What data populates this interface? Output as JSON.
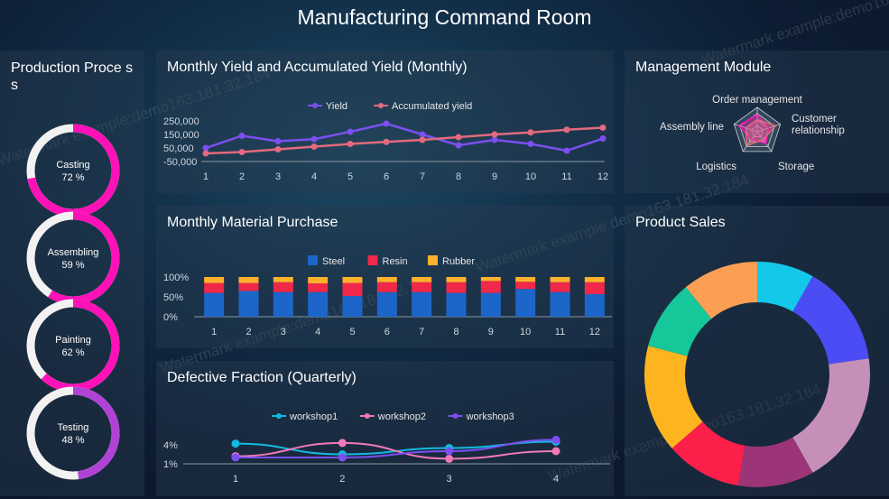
{
  "page_title": "Manufacturing Command Room",
  "watermark": "Watermark example:demo163.181.32.184",
  "production": {
    "title": "Production Proce ss",
    "rings": [
      {
        "label": "Casting",
        "pct_text": "72 %",
        "value": 72,
        "color": "#ff11b8"
      },
      {
        "label": "Assembling",
        "pct_text": "59 %",
        "value": 59,
        "color": "#ff11b8"
      },
      {
        "label": "Painting",
        "pct_text": "62 %",
        "value": 62,
        "color": "#ff11b8"
      },
      {
        "label": "Testing",
        "pct_text": "48 %",
        "value": 48,
        "color": "#b043d6"
      }
    ]
  },
  "yield_chart": {
    "title": "Monthly Yield and Accumulated Yield (Monthly)",
    "chart_data": {
      "type": "line",
      "x": [
        1,
        2,
        3,
        4,
        5,
        6,
        7,
        8,
        9,
        10,
        11,
        12
      ],
      "series": [
        {
          "name": "Yield",
          "color": "#7b4ff0",
          "values": [
            50000,
            140000,
            100000,
            115000,
            170000,
            230000,
            150000,
            70000,
            110000,
            80000,
            30000,
            120000
          ]
        },
        {
          "name": "Accumulated yield",
          "color": "#e36a7e",
          "values": [
            10000,
            20000,
            40000,
            60000,
            80000,
            95000,
            110000,
            130000,
            150000,
            165000,
            185000,
            200000
          ]
        }
      ],
      "y_ticks": [
        "250,000",
        "150,000",
        "50,000",
        "-50,000"
      ],
      "ylim": [
        -50000,
        250000
      ]
    }
  },
  "purchase_chart": {
    "title": "Monthly Material Purchase",
    "chart_data": {
      "type": "bar",
      "categories": [
        "1",
        "2",
        "3",
        "4",
        "5",
        "6",
        "7",
        "8",
        "9",
        "10",
        "11",
        "12"
      ],
      "series": [
        {
          "name": "Steel",
          "color": "#1c66c9",
          "values": [
            60,
            65,
            62,
            62,
            52,
            62,
            62,
            60,
            60,
            70,
            62,
            57
          ]
        },
        {
          "name": "Resin",
          "color": "#f0284a",
          "values": [
            25,
            20,
            25,
            22,
            33,
            25,
            25,
            27,
            30,
            18,
            25,
            30
          ]
        },
        {
          "name": "Rubber",
          "color": "#fdb12c",
          "values": [
            15,
            15,
            13,
            16,
            15,
            13,
            13,
            13,
            10,
            12,
            13,
            13
          ]
        }
      ],
      "y_ticks": [
        "100%",
        "50%",
        "0%"
      ],
      "ylim": [
        0,
        100
      ]
    }
  },
  "defective_chart": {
    "title": "Defective Fraction (Quarterly)",
    "chart_data": {
      "type": "line",
      "x": [
        1,
        2,
        3,
        4
      ],
      "series": [
        {
          "name": "workshop1",
          "color": "#13b9e0",
          "values": [
            4.2,
            2.5,
            3.5,
            4.5
          ]
        },
        {
          "name": "workshop2",
          "color": "#f07ab6",
          "values": [
            2.2,
            4.3,
            1.8,
            3.0
          ]
        },
        {
          "name": "workshop3",
          "color": "#7b4ff0",
          "values": [
            2.0,
            2.0,
            3.0,
            4.8
          ]
        }
      ],
      "y_ticks": [
        "4%",
        "1%"
      ],
      "ylim": [
        1,
        4
      ]
    }
  },
  "management": {
    "title": "Management Module",
    "chart_data": {
      "type": "radar",
      "axes": [
        "Order management",
        "Customer relationship",
        "Storage",
        "Logistics",
        "Assembly line"
      ],
      "series": [
        {
          "values": [
            0.7,
            0.5,
            0.6,
            0.4,
            0.8
          ],
          "color": "#ff11b8"
        },
        {
          "values": [
            0.5,
            0.8,
            0.4,
            0.7,
            0.5
          ],
          "color": "#e36a7e"
        }
      ]
    }
  },
  "sales": {
    "title": "Product Sales",
    "chart_data": {
      "type": "pie",
      "values": [
        9,
        16,
        21,
        12,
        12,
        17,
        11,
        12
      ],
      "colors": [
        "#13c8e8",
        "#4c4cf5",
        "#c68fb8",
        "#9b3577",
        "#fc1f4a",
        "#fdb41f",
        "#16c79a",
        "#fc9f55"
      ]
    }
  }
}
